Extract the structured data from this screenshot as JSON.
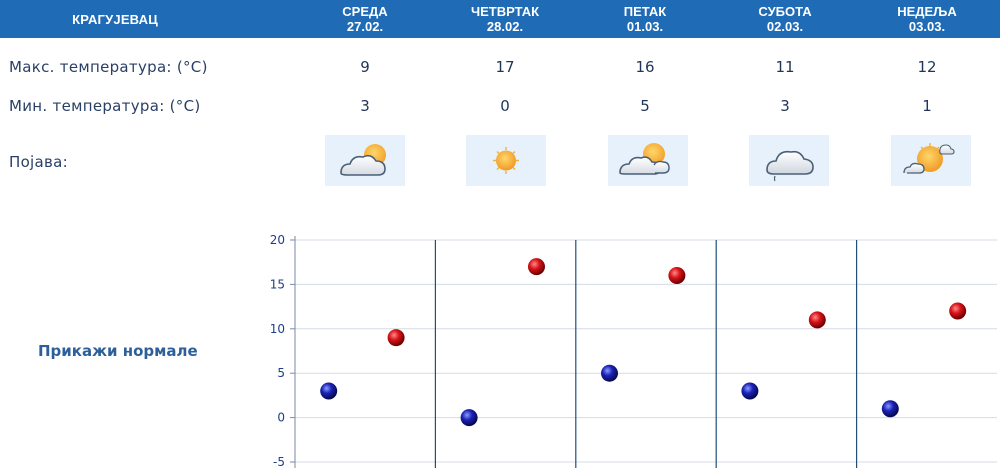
{
  "city": "КРАГУЈЕВАЦ",
  "days": [
    {
      "name": "СРЕДА",
      "date": "27.02.",
      "max": "9",
      "min": "3",
      "icon": "sun-behind-cloud-icon"
    },
    {
      "name": "ЧЕТВРТАК",
      "date": "28.02.",
      "max": "17",
      "min": "0",
      "icon": "sun-icon"
    },
    {
      "name": "ПЕТАК",
      "date": "01.03.",
      "max": "16",
      "min": "5",
      "icon": "sun-behind-cloud-icon"
    },
    {
      "name": "СУБОТА",
      "date": "02.03.",
      "max": "11",
      "min": "3",
      "icon": "cloud-drizzle-icon"
    },
    {
      "name": "НЕДЕЉА",
      "date": "03.03.",
      "max": "12",
      "min": "1",
      "icon": "sun-with-cloud-icon"
    }
  ],
  "labels": {
    "max": "Макс. температура: (°C)",
    "min": "Мин. температура: (°C)",
    "phenomenon": "Појава:"
  },
  "normals_link": "Прикажи нормале",
  "colors": {
    "header": "#1f6bb5",
    "max_marker": "#d01010",
    "min_marker": "#1a1ab0",
    "grid": "#d4dbe4",
    "divider": "#1f4f7a"
  },
  "chart_data": {
    "type": "scatter",
    "ylim": [
      -5,
      20
    ],
    "yticks": [
      "20",
      "15",
      "10",
      "5",
      "0",
      "-5"
    ],
    "categories": [
      "27.02.",
      "28.02.",
      "01.03.",
      "02.03.",
      "03.03."
    ],
    "series": [
      {
        "values": [
          3,
          0,
          5,
          3,
          1
        ]
      },
      {
        "values": [
          9,
          17,
          16,
          11,
          12
        ]
      }
    ]
  }
}
